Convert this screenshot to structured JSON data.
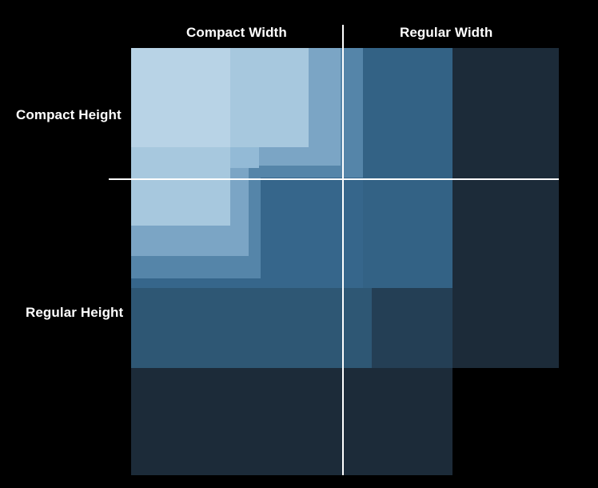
{
  "labels": {
    "compact_width": "Compact Width",
    "regular_width": "Regular Width",
    "compact_height": "Compact Height",
    "regular_height": "Regular Height"
  },
  "colors": {
    "background": "#000000",
    "divider": "#ffffff",
    "label_text": "#ffffff"
  },
  "size_class_regions": [
    {
      "name": "largest-region",
      "color": "#1c2b39"
    },
    {
      "name": "region-2",
      "color": "#243f55"
    },
    {
      "name": "region-3",
      "color": "#2e5774"
    },
    {
      "name": "region-4",
      "color": "#336285"
    },
    {
      "name": "region-5",
      "color": "#36668b"
    },
    {
      "name": "region-6",
      "color": "#5585a9"
    },
    {
      "name": "region-7",
      "color": "#7ba5c5"
    },
    {
      "name": "region-8",
      "color": "#93bad6"
    },
    {
      "name": "region-9",
      "color": "#a7c8de"
    },
    {
      "name": "smallest-region",
      "color": "#b8d3e6"
    }
  ]
}
